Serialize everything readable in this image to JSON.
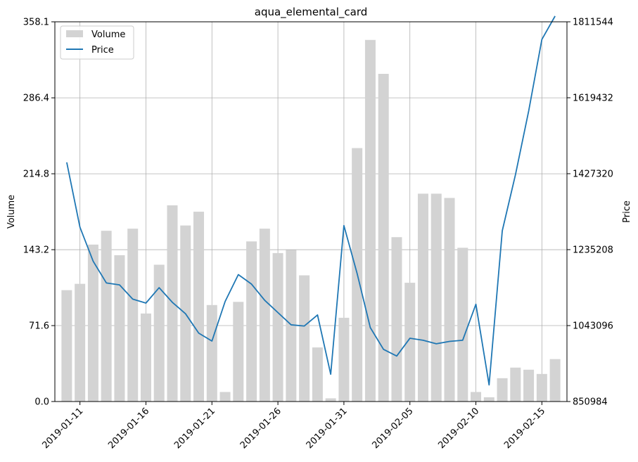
{
  "chart_data": {
    "type": "bar+line",
    "title": "aqua_elemental_card",
    "xlabel": "",
    "ylabel_left": "Volume",
    "ylabel_right": "Price",
    "x": [
      "2019-01-10",
      "2019-01-11",
      "2019-01-12",
      "2019-01-13",
      "2019-01-14",
      "2019-01-15",
      "2019-01-16",
      "2019-01-17",
      "2019-01-18",
      "2019-01-19",
      "2019-01-20",
      "2019-01-21",
      "2019-01-22",
      "2019-01-23",
      "2019-01-24",
      "2019-01-25",
      "2019-01-26",
      "2019-01-27",
      "2019-01-28",
      "2019-01-29",
      "2019-01-30",
      "2019-01-31",
      "2019-02-01",
      "2019-02-02",
      "2019-02-03",
      "2019-02-04",
      "2019-02-05",
      "2019-02-06",
      "2019-02-07",
      "2019-02-08",
      "2019-02-09",
      "2019-02-10",
      "2019-02-11",
      "2019-02-12",
      "2019-02-13",
      "2019-02-14",
      "2019-02-15",
      "2019-02-16"
    ],
    "x_ticks": [
      "2019-01-11",
      "2019-01-16",
      "2019-01-21",
      "2019-01-26",
      "2019-01-31",
      "2019-02-05",
      "2019-02-10",
      "2019-02-15"
    ],
    "series": [
      {
        "name": "Volume",
        "type": "bar",
        "axis": "left",
        "color": "#d3d3d3",
        "values": [
          105,
          111,
          148,
          161,
          138,
          163,
          83,
          129,
          185,
          166,
          179,
          91,
          9,
          94,
          151,
          163,
          140,
          143,
          119,
          51,
          3,
          79,
          239,
          341,
          309,
          155,
          112,
          196,
          196,
          192,
          145,
          9,
          4,
          22,
          32,
          30,
          26,
          40
        ]
      },
      {
        "name": "Price",
        "type": "line",
        "axis": "right",
        "color": "#1f77b4",
        "values": [
          1456000,
          1292000,
          1206000,
          1151000,
          1146000,
          1110000,
          1100000,
          1139000,
          1102000,
          1073000,
          1024000,
          1004000,
          1104000,
          1172000,
          1148000,
          1107000,
          1076000,
          1045000,
          1042000,
          1070000,
          920000,
          1296000,
          1175000,
          1038000,
          983000,
          966000,
          1011000,
          1006000,
          997000,
          1003000,
          1006000,
          1097000,
          893000,
          1283000,
          1425000,
          1586000,
          1767000,
          1826000
        ]
      }
    ],
    "ylim_left": [
      0,
      358.1
    ],
    "ylim_right": [
      850984,
      1811544
    ],
    "yticks_left": [
      "0.0",
      "71.6",
      "143.2",
      "214.8",
      "286.4",
      "358.1"
    ],
    "yticks_right": [
      "850984",
      "1043096",
      "1235208",
      "1427320",
      "1619432",
      "1811544"
    ],
    "grid": true,
    "legend_position": "upper-left"
  }
}
